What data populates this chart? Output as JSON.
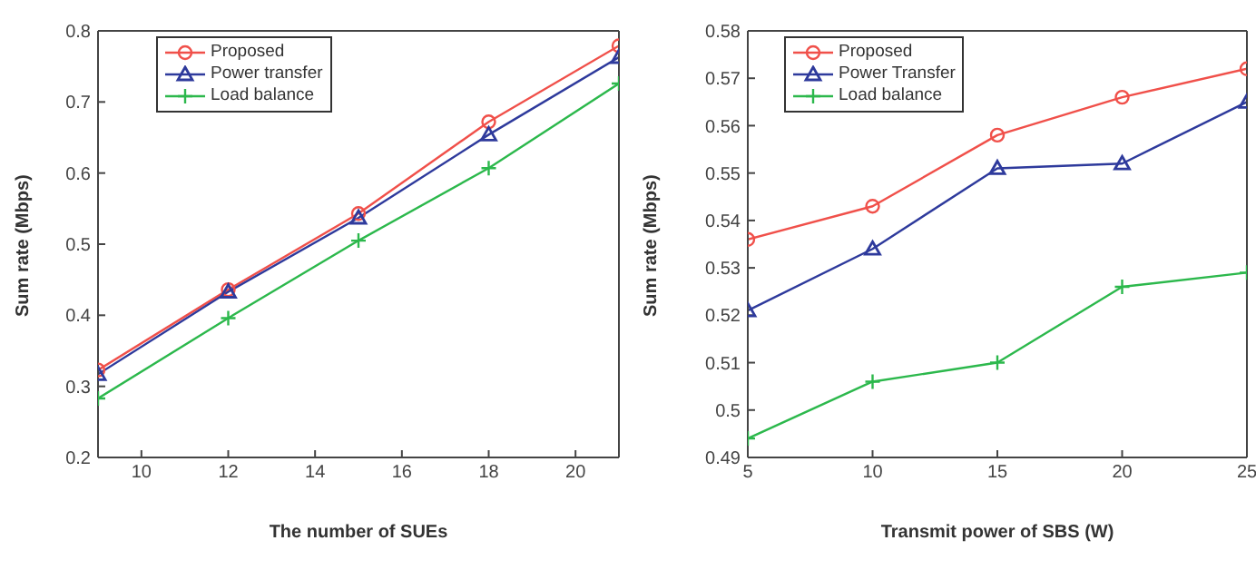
{
  "chart_data": [
    {
      "type": "line",
      "xlabel": "The number of SUEs",
      "ylabel": "Sum rate (Mbps)",
      "x": [
        9,
        12,
        15,
        18,
        21
      ],
      "xlim": [
        9,
        21
      ],
      "xticks": [
        10,
        12,
        14,
        16,
        18,
        20
      ],
      "ylim": [
        0.2,
        0.8
      ],
      "yticks": [
        0.2,
        0.3,
        0.4,
        0.5,
        0.6,
        0.7,
        0.8
      ],
      "legend": "top left",
      "grid": false,
      "series": [
        {
          "name": "Proposed",
          "color": "#f0504a",
          "marker": "circle",
          "values": [
            0.323,
            0.436,
            0.543,
            0.672,
            0.779
          ]
        },
        {
          "name": "Power transfer",
          "color": "#2e3a9c",
          "marker": "triangle",
          "values": [
            0.317,
            0.433,
            0.537,
            0.654,
            0.763
          ]
        },
        {
          "name": "Load balance",
          "color": "#2cb84c",
          "marker": "cross",
          "values": [
            0.283,
            0.396,
            0.505,
            0.607,
            0.726
          ]
        }
      ]
    },
    {
      "type": "line",
      "xlabel": "Transmit power of SBS (W)",
      "ylabel": "Sum rate (Mbps)",
      "x": [
        5,
        10,
        15,
        20,
        25
      ],
      "xlim": [
        5,
        25
      ],
      "xticks": [
        5,
        10,
        15,
        20,
        25
      ],
      "ylim": [
        0.49,
        0.58
      ],
      "yticks": [
        0.49,
        0.5,
        0.51,
        0.52,
        0.53,
        0.54,
        0.55,
        0.56,
        0.57,
        0.58
      ],
      "legend": "top left",
      "grid": false,
      "series": [
        {
          "name": "Proposed",
          "color": "#f0504a",
          "marker": "circle",
          "values": [
            0.536,
            0.543,
            0.558,
            0.566,
            0.572
          ]
        },
        {
          "name": "Power Transfer",
          "color": "#2e3a9c",
          "marker": "triangle",
          "values": [
            0.521,
            0.534,
            0.551,
            0.552,
            0.565
          ]
        },
        {
          "name": "Load balance",
          "color": "#2cb84c",
          "marker": "cross",
          "values": [
            0.494,
            0.506,
            0.51,
            0.526,
            0.529
          ]
        }
      ]
    }
  ]
}
